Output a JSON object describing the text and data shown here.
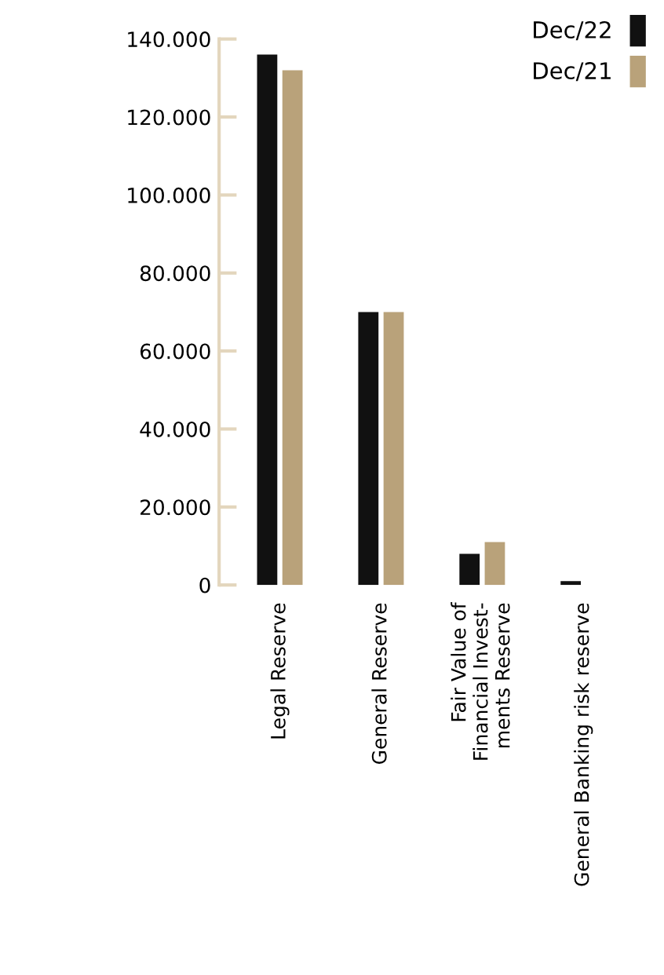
{
  "chart_data": {
    "type": "bar",
    "categories": [
      "Legal Reserve",
      "General Reserve",
      "Fair Value of\nFinancial Invest-\nments Reserve",
      "General Banking risk reserve"
    ],
    "series": [
      {
        "name": "Dec/22",
        "color": "#111111",
        "values": [
          136000,
          70000,
          8000,
          1000
        ]
      },
      {
        "name": "Dec/21",
        "color": "#b9a27a",
        "values": [
          132000,
          70000,
          11000,
          null
        ]
      }
    ],
    "ylim": [
      0,
      140000
    ],
    "yticks": [
      {
        "value": 0,
        "label": "0"
      },
      {
        "value": 20000,
        "label": "20.000"
      },
      {
        "value": 40000,
        "label": "40.000"
      },
      {
        "value": 60000,
        "label": "60.000"
      },
      {
        "value": 80000,
        "label": "80.000"
      },
      {
        "value": 100000,
        "label": "100.000"
      },
      {
        "value": 120000,
        "label": "120.000"
      },
      {
        "value": 140000,
        "label": "140.000"
      }
    ],
    "legend": "top right",
    "grid": false
  }
}
